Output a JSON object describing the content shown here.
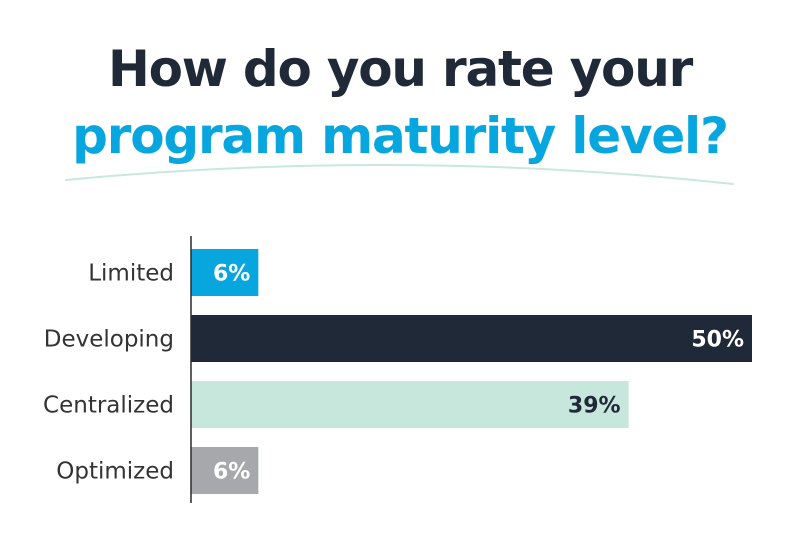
{
  "header": {
    "title_line_1": "How do you rate your",
    "title_line_2": "program maturity level?"
  },
  "colors": {
    "title_dark": "#1f2937",
    "title_accent": "#08a6df",
    "underline": "#c9e8dd",
    "axis": "#2a2a2a",
    "label_text": "#333333"
  },
  "chart_data": {
    "type": "bar",
    "orientation": "horizontal",
    "categories": [
      "Limited",
      "Developing",
      "Centralized",
      "Optimized"
    ],
    "values": [
      6,
      50,
      39,
      6
    ],
    "value_labels": [
      "6%",
      "50%",
      "39%",
      "6%"
    ],
    "bar_colors": [
      "#08a6df",
      "#1f2937",
      "#c7e6dc",
      "#a6a8ab"
    ],
    "value_label_colors": [
      "#ffffff",
      "#ffffff",
      "#1f2937",
      "#ffffff"
    ],
    "unit": "%",
    "xlim": [
      0,
      50
    ],
    "grid": false,
    "legend": "none"
  }
}
